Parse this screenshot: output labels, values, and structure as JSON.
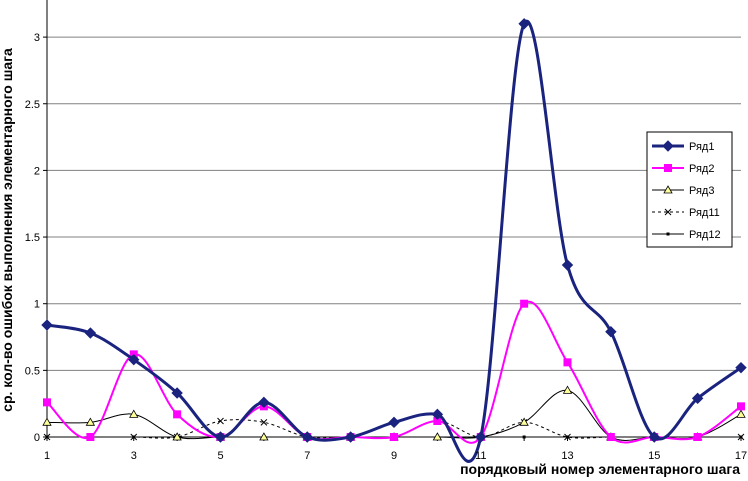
{
  "chart_data": {
    "type": "line",
    "xlabel": "порядковый номер элементарного шага",
    "ylabel": "ср. кол-во ошибок выполнения элементарного шага",
    "x": [
      1,
      2,
      3,
      4,
      5,
      6,
      7,
      8,
      9,
      10,
      11,
      12,
      13,
      14,
      15,
      16,
      17
    ],
    "x_tick_labels": [
      "1",
      "3",
      "5",
      "7",
      "9",
      "11",
      "13",
      "15",
      "17"
    ],
    "x_tick_values": [
      1,
      3,
      5,
      7,
      9,
      11,
      13,
      15,
      17
    ],
    "xlim": [
      1,
      17
    ],
    "ylim": [
      0,
      3.3
    ],
    "y_ticks": [
      0,
      0.5,
      1,
      1.5,
      2,
      2.5,
      3
    ],
    "y_tick_labels": [
      "0",
      "0.5",
      "1",
      "1.5",
      "2",
      "2.5",
      "3"
    ],
    "grid": "horizontal",
    "legend_position": "right",
    "series": [
      {
        "name": "Ряд1",
        "color": "#1a237e",
        "marker": "diamond",
        "dash": "none",
        "values": [
          0.84,
          0.78,
          0.58,
          0.33,
          0.0,
          0.26,
          0.0,
          0.0,
          0.11,
          0.17,
          0.0,
          3.1,
          1.29,
          0.79,
          0.0,
          0.29,
          0.52
        ]
      },
      {
        "name": "Ряд2",
        "color": "#ff00ff",
        "marker": "square",
        "dash": "none",
        "values": [
          0.26,
          0.0,
          0.62,
          0.17,
          0.0,
          0.23,
          0.0,
          0.0,
          0.0,
          0.12,
          0.0,
          1.0,
          0.56,
          0.0,
          0.0,
          0.0,
          0.23
        ]
      },
      {
        "name": "Ряд3",
        "color": "#000000",
        "marker": "triangle",
        "dash": "none",
        "values": [
          0.11,
          0.11,
          0.17,
          0.0,
          0.0,
          0.0,
          0.0,
          0.0,
          0.0,
          0.0,
          0.0,
          0.11,
          0.35,
          0.0,
          0.0,
          0.0,
          0.17
        ]
      },
      {
        "name": "Ряд11",
        "color": "#000000",
        "marker": "x",
        "dash": "3,3",
        "values": [
          0.0,
          0.0,
          0.0,
          0.0,
          0.12,
          0.11,
          0.0,
          0.0,
          0.0,
          0.12,
          0.0,
          0.11,
          0.0,
          0.0,
          0.0,
          0.0,
          0.0
        ]
      },
      {
        "name": "Ряд12",
        "color": "#000000",
        "marker": "dot",
        "dash": "none",
        "values": [
          0.0,
          0.0,
          0.0,
          0.0,
          0.0,
          0.0,
          0.0,
          0.0,
          0.0,
          0.0,
          0.0,
          0.0,
          0.0,
          0.0,
          0.0,
          0.0,
          0.0
        ]
      }
    ]
  }
}
